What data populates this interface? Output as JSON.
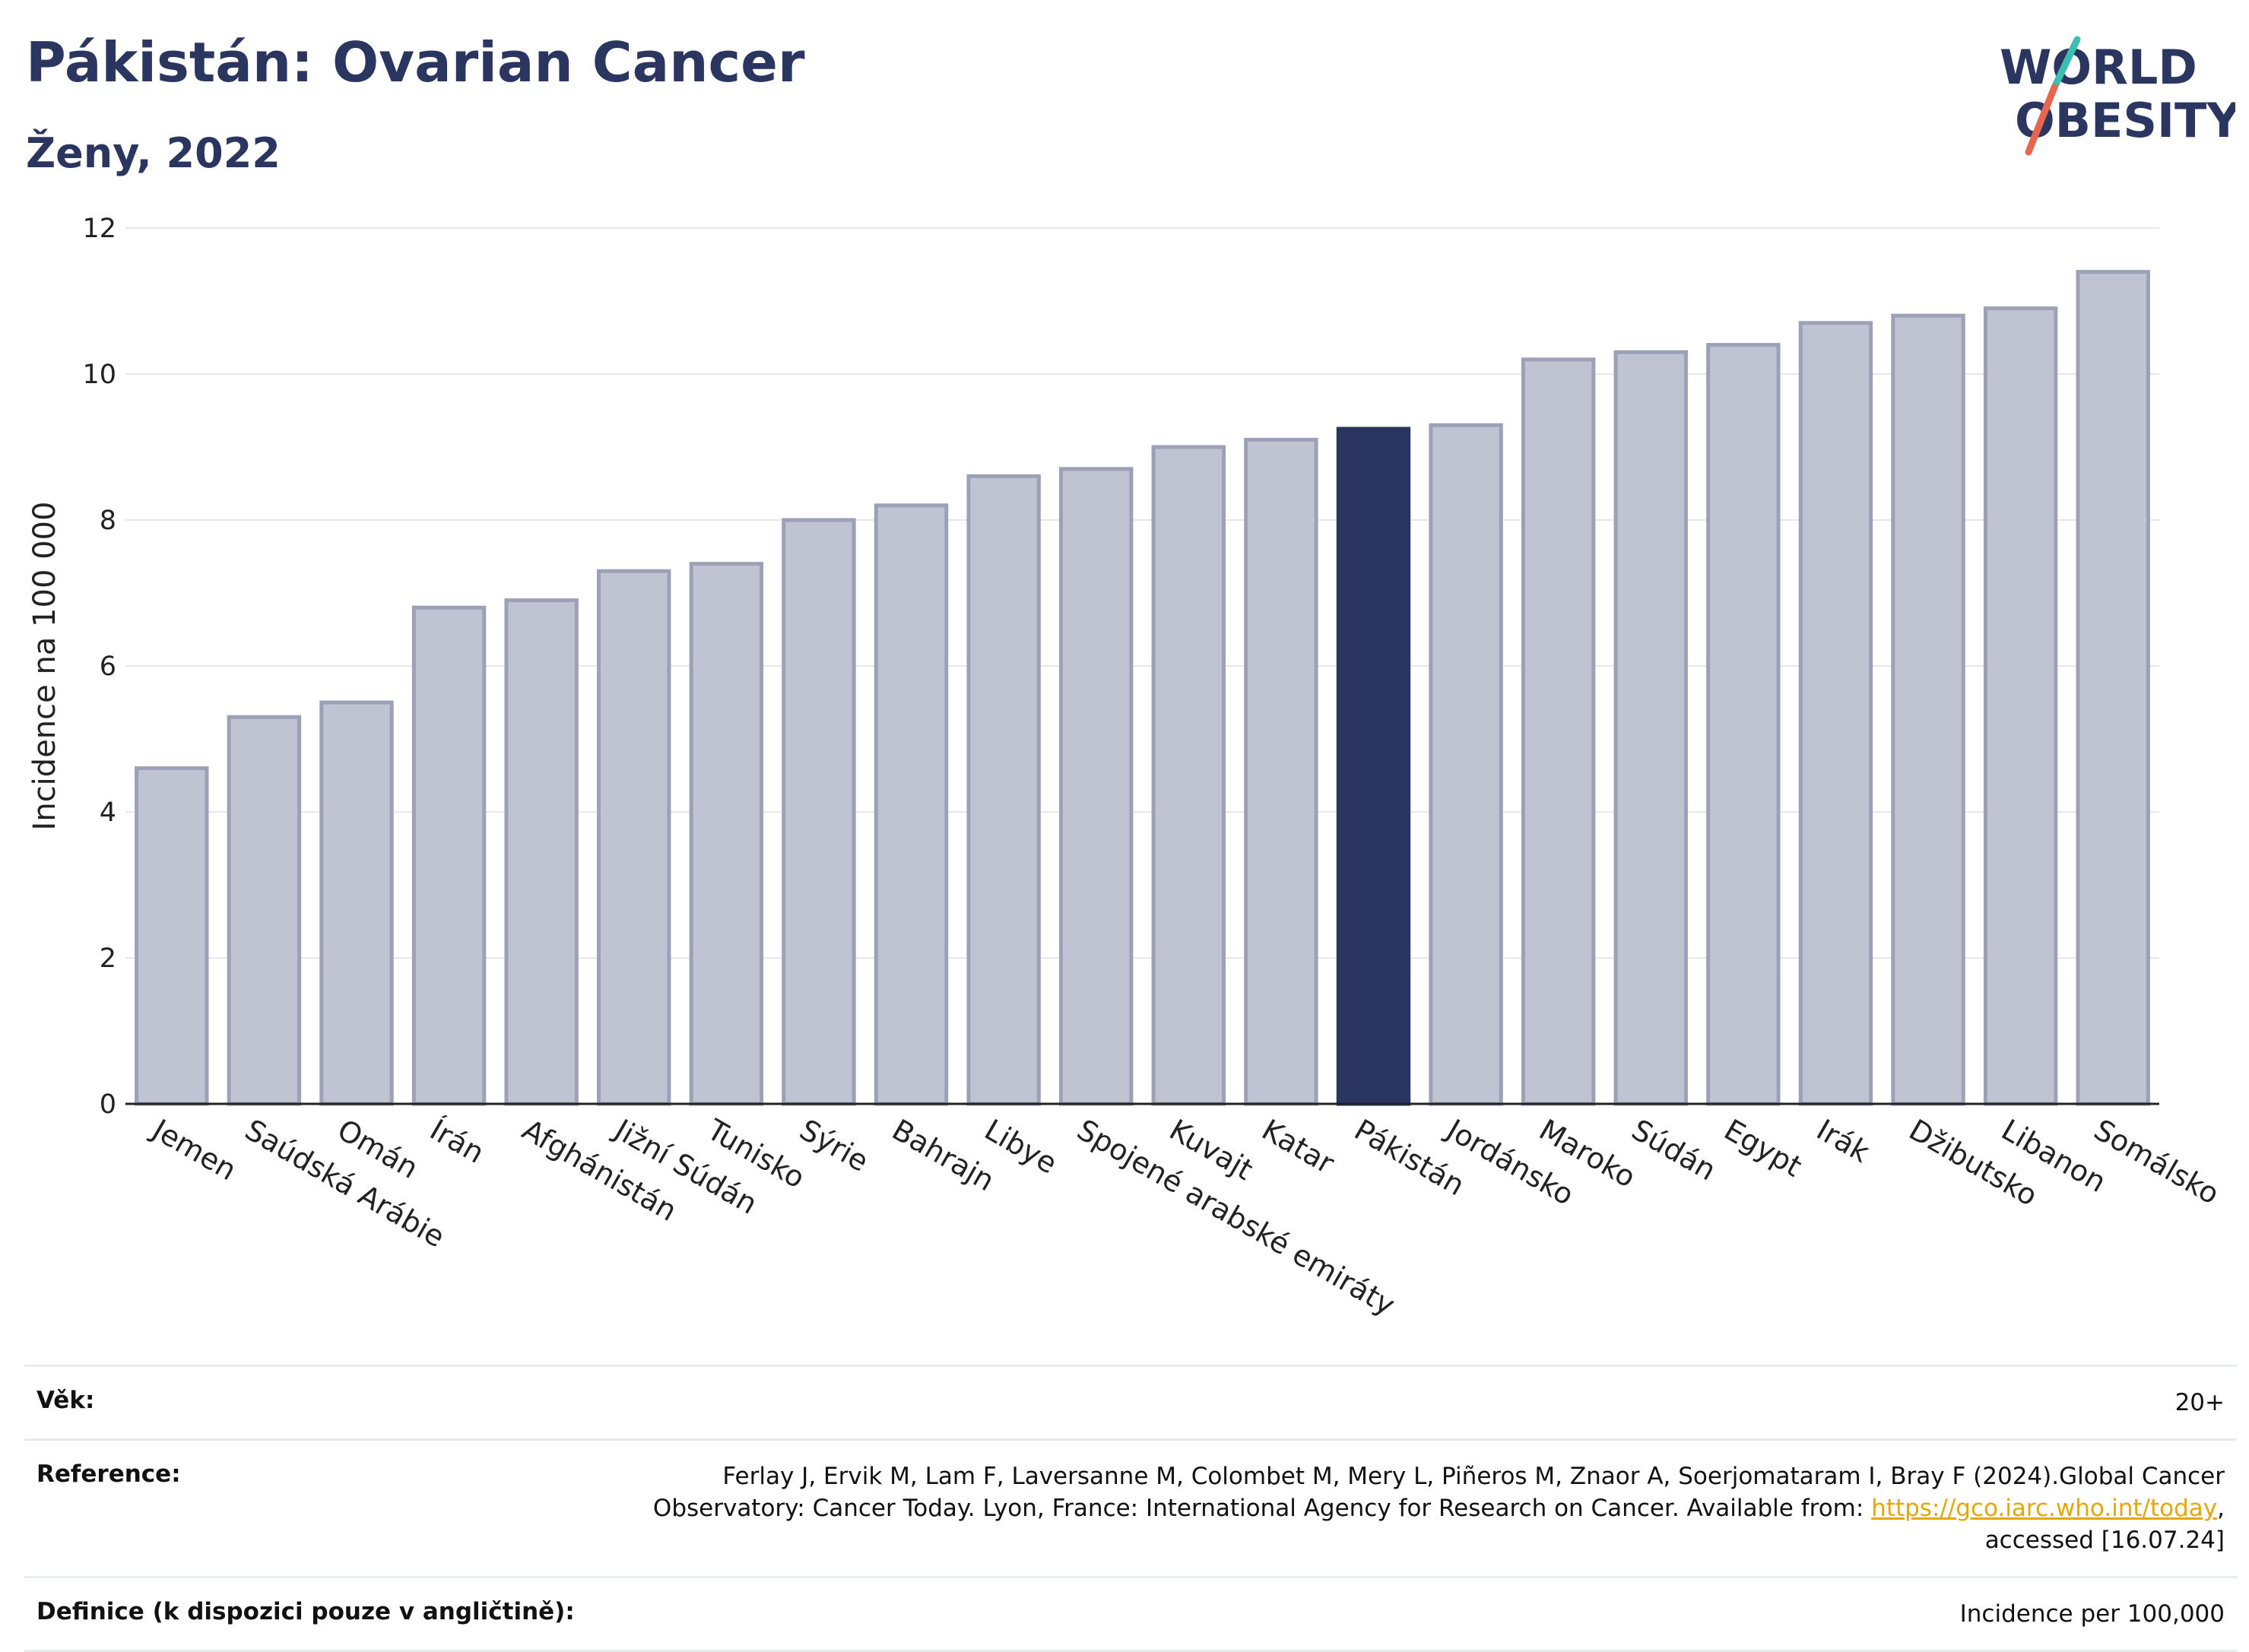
{
  "header": {
    "title": "Pákistán: Ovarian Cancer",
    "subtitle": "Ženy, 2022"
  },
  "logo": {
    "line1": "WORLD",
    "line2": "OBESITY",
    "accent_colors": [
      "#3bbfb0",
      "#e8664f"
    ]
  },
  "chart_data": {
    "type": "bar",
    "ylabel": "Incidence na 100 000",
    "ylim": [
      0,
      12
    ],
    "yticks": [
      0,
      2,
      4,
      6,
      8,
      10,
      12
    ],
    "grid": true,
    "categories": [
      "Jemen",
      "Saúdská Arábie",
      "Omán",
      "Írán",
      "Afghánistán",
      "Jižní Súdán",
      "Tunisko",
      "Sýrie",
      "Bahrajn",
      "Libye",
      "Spojené arabské emiráty",
      "Kuvajt",
      "Katar",
      "Pákistán",
      "Jordánsko",
      "Maroko",
      "Súdán",
      "Egypt",
      "Irák",
      "Džibutsko",
      "Libanon",
      "Somálsko"
    ],
    "values": [
      4.6,
      5.3,
      5.5,
      6.8,
      6.9,
      7.3,
      7.4,
      8.0,
      8.2,
      8.6,
      8.7,
      9.0,
      9.1,
      9.25,
      9.3,
      10.2,
      10.3,
      10.4,
      10.7,
      10.8,
      10.9,
      11.4
    ],
    "highlight": "Pákistán",
    "colors": {
      "bar": "#c0c3d1",
      "bar_border": "#9da1b8",
      "highlight": "#2a3560",
      "grid": "#e6e8ee"
    }
  },
  "info": {
    "age_label": "Věk:",
    "age_value": "20+",
    "reference_label": "Reference:",
    "reference_text": "Ferlay J, Ervik M, Lam F, Laversanne M, Colombet M, Mery L, Piñeros M, Znaor A, Soerjomataram I, Bray F (2024).Global Cancer Observatory: Cancer Today. Lyon, France: International Agency for Research on Cancer. Available from: ",
    "reference_link": "https://gco.iarc.who.int/today",
    "reference_tail": ", accessed [16.07.24]",
    "definition_label": "Definice (k dispozici pouze v angličtině):",
    "definition_value": "Incidence per 100,000"
  }
}
